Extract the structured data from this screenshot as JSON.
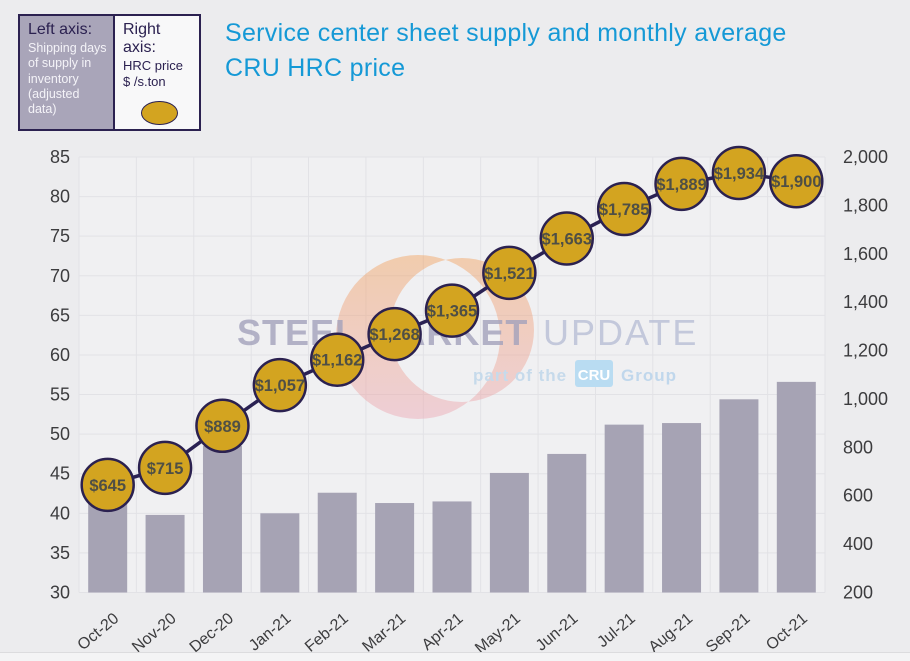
{
  "title": "Service center sheet supply and monthly average CRU HRC price",
  "legend": {
    "left": {
      "title": "Left axis:",
      "body": "Shipping days of supply in inventory (adjusted data)"
    },
    "right": {
      "title": "Right axis:",
      "line1": "HRC price",
      "line2": "$ /s.ton",
      "marker": "gold-circle"
    }
  },
  "watermark": {
    "brand_bold": "STEEL MARKET",
    "brand_light": "UPDATE",
    "tagline_prefix": "part of the",
    "cru_badge": "CRU",
    "tagline_suffix": "Group"
  },
  "colors": {
    "title": "#1599d6",
    "bar": "#a6a3b4",
    "line": "#2a2153",
    "marker_fill": "#d3a420",
    "marker_stroke": "#2b2150",
    "marker_label": "#4f4f45",
    "tick_label": "#3c3c3e",
    "grid": "#e2e2e6",
    "page_bg": "#ececee",
    "plot_bg": "#f0f0f2",
    "legend_left_bg": "#a9a5b9",
    "legend_border": "#2b2150",
    "watermark_text": "#a3a2bc",
    "watermark_light": "#b8bfd6",
    "cru_box": "#b9dcf2"
  },
  "chart_data": {
    "type": "bar",
    "subtype": "bar+line dual axis",
    "categories": [
      "Oct-20",
      "Nov-20",
      "Dec-20",
      "Jan-21",
      "Feb-21",
      "Mar-21",
      "Apr-21",
      "May-21",
      "Jun-21",
      "Jul-21",
      "Aug-21",
      "Sep-21",
      "Oct-21"
    ],
    "series": [
      {
        "name": "Shipping days of supply in inventory (adjusted data)",
        "type": "bar",
        "axis": "left",
        "values": [
          41.2,
          39.8,
          48.5,
          40.0,
          42.6,
          41.3,
          41.5,
          45.1,
          47.5,
          51.2,
          51.4,
          54.4,
          56.6
        ]
      },
      {
        "name": "HRC price $ /s.ton",
        "type": "line-marker",
        "axis": "right",
        "values": [
          645,
          715,
          889,
          1057,
          1162,
          1268,
          1365,
          1521,
          1663,
          1785,
          1889,
          1934,
          1900
        ],
        "labels": [
          "$645",
          "$715",
          "$889",
          "$1,057",
          "$1,162",
          "$1,268",
          "$1,365",
          "$1,521",
          "$1,663",
          "$1,785",
          "$1,889",
          "$1,934",
          "$1,900"
        ]
      }
    ],
    "left_axis": {
      "min": 30,
      "max": 85,
      "step": 5,
      "ticks": [
        {
          "v": 85,
          "label": "85"
        },
        {
          "v": 80,
          "label": "80"
        },
        {
          "v": 75,
          "label": "75"
        },
        {
          "v": 70,
          "label": "70"
        },
        {
          "v": 65,
          "label": "65"
        },
        {
          "v": 60,
          "label": "60"
        },
        {
          "v": 55,
          "label": "55"
        },
        {
          "v": 50,
          "label": "50"
        },
        {
          "v": 45,
          "label": "45"
        },
        {
          "v": 40,
          "label": "40"
        },
        {
          "v": 35,
          "label": "35"
        },
        {
          "v": 30,
          "label": "30"
        }
      ]
    },
    "right_axis": {
      "min": 200,
      "max": 2000,
      "step": 200,
      "ticks": [
        {
          "v": 2000,
          "label": "2,000"
        },
        {
          "v": 1800,
          "label": "1,800"
        },
        {
          "v": 1600,
          "label": "1,600"
        },
        {
          "v": 1400,
          "label": "1,400"
        },
        {
          "v": 1200,
          "label": "1,200"
        },
        {
          "v": 1000,
          "label": "1,000"
        },
        {
          "v": 800,
          "label": "800"
        },
        {
          "v": 600,
          "label": "600"
        },
        {
          "v": 400,
          "label": "400"
        },
        {
          "v": 200,
          "label": "200"
        }
      ]
    },
    "grid": true,
    "legend_position": "top-left",
    "xlabel": "",
    "ylabel_left": "Shipping days of supply in inventory (adjusted data)",
    "ylabel_right": "HRC price $ /s.ton"
  }
}
